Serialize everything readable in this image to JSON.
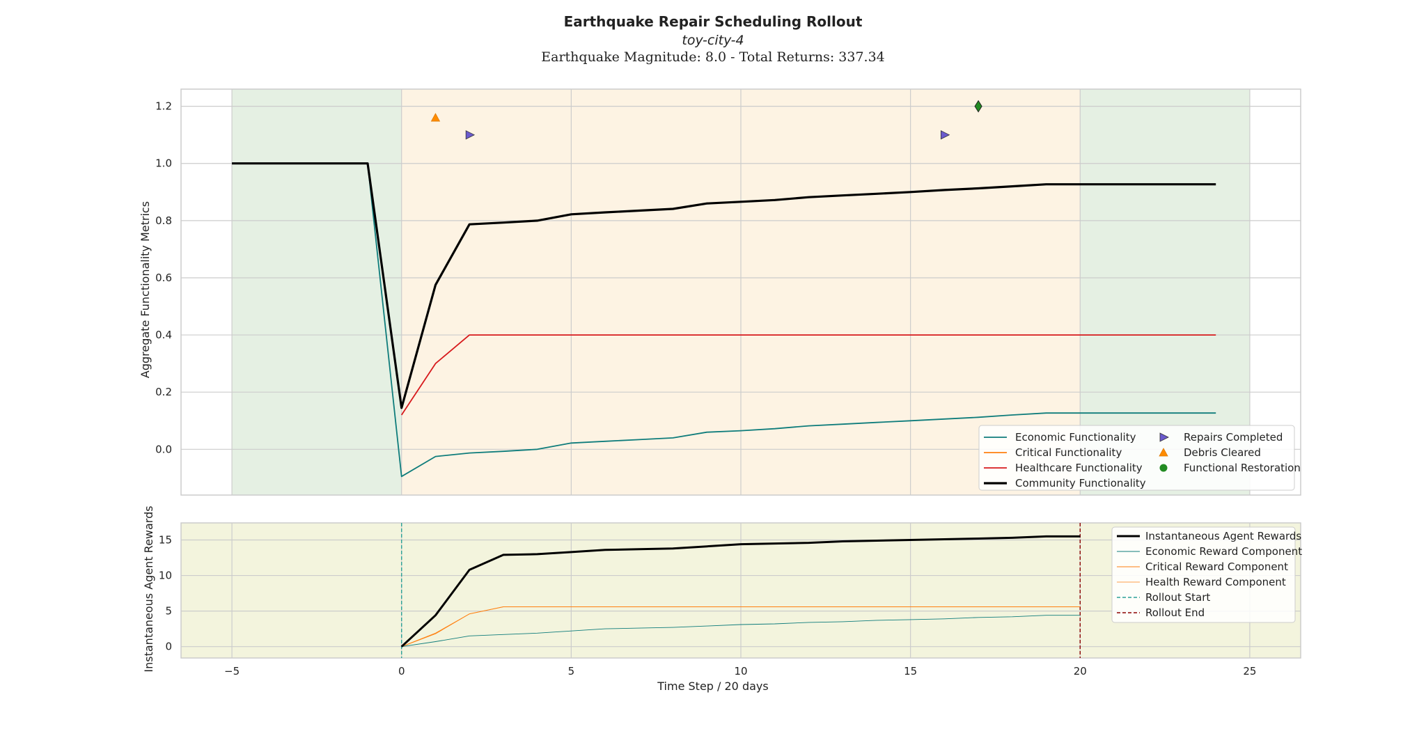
{
  "figure": {
    "title": "Earthquake Repair Scheduling Rollout",
    "subtitle": "toy-city-4",
    "subtitle2": "Earthquake Magnitude: 8.0 - Total Returns: 337.34",
    "xlabel": "Time Step / 20 days"
  },
  "colors": {
    "economic": "#0e7c7b",
    "critical": "#ff7f0e",
    "healthcare": "#d7191c",
    "community": "#000000",
    "repairs": "#6a5acd",
    "debris": "#ff8c00",
    "restoration": "#228b22",
    "green_band": "#e5f0e3",
    "orange_band": "#fdf3e3",
    "bottom_bg": "#f3f4dd",
    "rollout_start": "#2aa198",
    "rollout_end": "#8b0000"
  },
  "chart_data": [
    {
      "type": "line",
      "ylabel": "Aggregate Functionality Metrics",
      "xlim": [
        -6.5,
        26.5
      ],
      "ylim": [
        -0.16,
        1.26
      ],
      "xticks": [
        -5,
        0,
        5,
        10,
        15,
        20,
        25
      ],
      "yticks": [
        0.0,
        0.2,
        0.4,
        0.6,
        0.8,
        1.0,
        1.2
      ],
      "grid": true,
      "bands": [
        {
          "from": -5,
          "to": 0,
          "kind": "green"
        },
        {
          "from": 0,
          "to": 20,
          "kind": "orange"
        },
        {
          "from": 20,
          "to": 25,
          "kind": "green"
        }
      ],
      "series": [
        {
          "name": "Economic Functionality",
          "key": "economic",
          "width": 1.8,
          "x": [
            -5,
            -1,
            0,
            1,
            2,
            3,
            4,
            5,
            6,
            7,
            8,
            9,
            10,
            11,
            12,
            13,
            14,
            15,
            16,
            17,
            18,
            19,
            20,
            21,
            22,
            23,
            24
          ],
          "y": [
            1.0,
            1.0,
            -0.095,
            -0.025,
            -0.013,
            -0.007,
            0.0,
            0.022,
            0.028,
            0.034,
            0.04,
            0.06,
            0.065,
            0.072,
            0.082,
            0.088,
            0.094,
            0.1,
            0.106,
            0.112,
            0.12,
            0.127,
            0.127,
            0.127,
            0.127,
            0.127,
            0.127
          ]
        },
        {
          "name": "Critical Functionality",
          "key": "critical",
          "width": 1.8,
          "x": [],
          "y": []
        },
        {
          "name": "Healthcare Functionality",
          "key": "healthcare",
          "width": 1.8,
          "x": [
            0,
            1,
            2,
            3,
            4,
            5,
            10,
            15,
            20,
            24
          ],
          "y": [
            0.12,
            0.3,
            0.4,
            0.4,
            0.4,
            0.4,
            0.4,
            0.4,
            0.4,
            0.4
          ]
        },
        {
          "name": "Community Functionality",
          "key": "community",
          "width": 3.2,
          "x": [
            -5,
            -1,
            0,
            1,
            2,
            3,
            4,
            5,
            6,
            7,
            8,
            9,
            10,
            11,
            12,
            13,
            14,
            15,
            16,
            17,
            18,
            19,
            20,
            21,
            22,
            23,
            24
          ],
          "y": [
            1.0,
            1.0,
            0.145,
            0.575,
            0.787,
            0.793,
            0.8,
            0.822,
            0.829,
            0.835,
            0.841,
            0.86,
            0.866,
            0.872,
            0.882,
            0.888,
            0.894,
            0.9,
            0.907,
            0.913,
            0.92,
            0.927,
            0.927,
            0.927,
            0.927,
            0.927,
            0.927
          ]
        }
      ],
      "markers": [
        {
          "name": "Repairs Completed",
          "shape": "triangle-right",
          "key": "repairs",
          "points": [
            [
              2,
              1.1
            ],
            [
              16,
              1.1
            ]
          ]
        },
        {
          "name": "Debris Cleared",
          "shape": "triangle-up",
          "key": "debris",
          "points": [
            [
              1,
              1.16
            ]
          ]
        },
        {
          "name": "Functional Restoration",
          "shape": "circle",
          "legend_only": true,
          "key": "restoration",
          "points": []
        },
        {
          "name": "",
          "shape": "diamond",
          "key": "restoration",
          "points": [
            [
              17,
              1.2
            ]
          ]
        }
      ],
      "legend": {
        "position": "lower-right",
        "columns": 2
      }
    },
    {
      "type": "line",
      "ylabel": "Instantaneous Agent Rewards",
      "xlim": [
        -6.5,
        26.5
      ],
      "ylim": [
        -1.6,
        17.4
      ],
      "xticks": [
        -5,
        0,
        5,
        10,
        15,
        20,
        25
      ],
      "yticks": [
        0,
        5,
        10,
        15
      ],
      "grid": true,
      "series": [
        {
          "name": "Instantaneous Agent Rewards",
          "key": "community",
          "width": 3,
          "x": [
            0,
            1,
            2,
            3,
            4,
            5,
            6,
            7,
            8,
            9,
            10,
            11,
            12,
            13,
            14,
            15,
            16,
            17,
            18,
            19,
            20
          ],
          "y": [
            0,
            4.4,
            10.8,
            12.9,
            13.0,
            13.3,
            13.6,
            13.7,
            13.8,
            14.1,
            14.4,
            14.5,
            14.6,
            14.8,
            14.9,
            15.0,
            15.1,
            15.2,
            15.3,
            15.5,
            15.5
          ]
        },
        {
          "name": "Economic Reward Component",
          "key": "economic",
          "width": 0.9,
          "x": [
            0,
            1,
            2,
            3,
            4,
            5,
            6,
            7,
            8,
            9,
            10,
            11,
            12,
            13,
            14,
            15,
            16,
            17,
            18,
            19,
            20
          ],
          "y": [
            0,
            0.7,
            1.5,
            1.7,
            1.9,
            2.2,
            2.5,
            2.6,
            2.7,
            2.9,
            3.1,
            3.2,
            3.4,
            3.5,
            3.7,
            3.8,
            3.9,
            4.1,
            4.2,
            4.4,
            4.4
          ]
        },
        {
          "name": "Critical Reward Component",
          "key": "critical",
          "width": 0.9,
          "x": [
            0,
            1,
            2,
            3,
            20
          ],
          "y": [
            0,
            1.9,
            4.6,
            5.6,
            5.6
          ]
        },
        {
          "name": "Health Reward Component",
          "key": "critical",
          "width": 0.8,
          "x": [
            0,
            1,
            2,
            3,
            20
          ],
          "y": [
            0,
            1.8,
            4.6,
            5.6,
            5.6
          ]
        }
      ],
      "vlines": [
        {
          "name": "Rollout Start",
          "x": 0,
          "key": "rollout_start"
        },
        {
          "name": "Rollout End",
          "x": 20,
          "key": "rollout_end"
        }
      ],
      "legend": {
        "position": "upper-right",
        "columns": 1
      }
    }
  ]
}
